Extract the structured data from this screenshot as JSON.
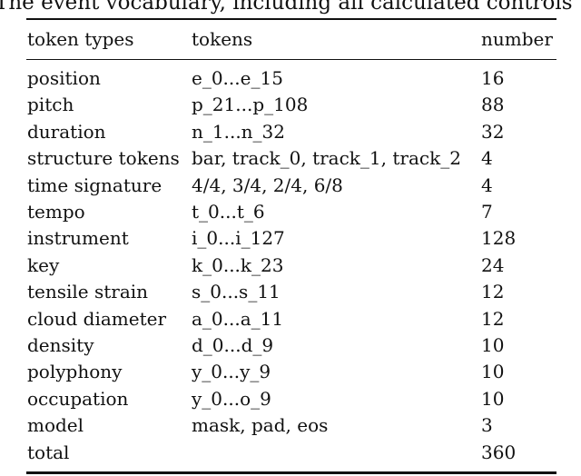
{
  "caption": "The event vocabulary, including all calculated controls",
  "table": {
    "headers": [
      "token types",
      "tokens",
      "number"
    ],
    "rows": [
      [
        "position",
        "e_0...e_15",
        "16"
      ],
      [
        "pitch",
        "p_21...p_108",
        "88"
      ],
      [
        "duration",
        "n_1...n_32",
        "32"
      ],
      [
        "structure tokens",
        "bar, track_0, track_1, track_2",
        "4"
      ],
      [
        "time signature",
        "4/4, 3/4, 2/4, 6/8",
        "4"
      ],
      [
        "tempo",
        "t_0...t_6",
        "7"
      ],
      [
        "instrument",
        "i_0...i_127",
        "128"
      ],
      [
        "key",
        "k_0...k_23",
        "24"
      ],
      [
        "tensile strain",
        "s_0...s_11",
        "12"
      ],
      [
        "cloud diameter",
        "a_0...a_11",
        "12"
      ],
      [
        "density",
        "d_0...d_9",
        "10"
      ],
      [
        "polyphony",
        "y_0...y_9",
        "10"
      ],
      [
        "occupation",
        "y_0...o_9",
        "10"
      ],
      [
        "model",
        "mask, pad, eos",
        "3"
      ],
      [
        "total",
        "",
        "360"
      ]
    ]
  }
}
